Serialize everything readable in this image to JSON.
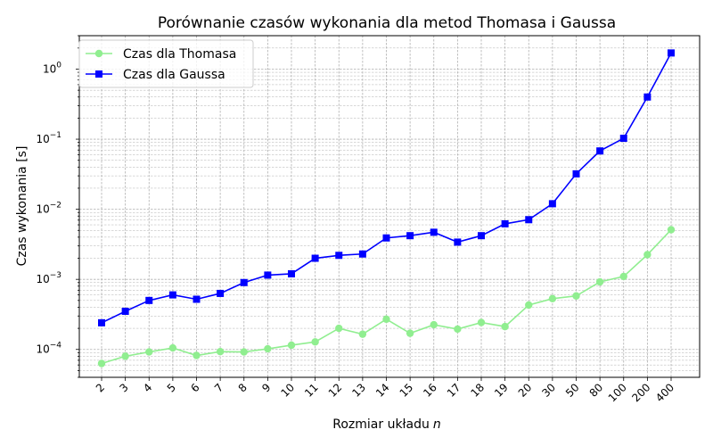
{
  "chart_data": {
    "type": "line",
    "title": "Porównanie czasów wykonania dla metod Thomasa i Gaussa",
    "xlabel": "Rozmiar układu",
    "xlabel_var": "n",
    "ylabel": "Czas wykonania [s]",
    "yscale": "log",
    "ylim": [
      4e-05,
      3
    ],
    "grid": true,
    "legend_position": "top-left",
    "categories": [
      "2",
      "3",
      "4",
      "5",
      "6",
      "7",
      "8",
      "9",
      "10",
      "11",
      "12",
      "13",
      "14",
      "15",
      "16",
      "17",
      "18",
      "19",
      "20",
      "30",
      "50",
      "80",
      "100",
      "200",
      "400"
    ],
    "y_ticks": [
      {
        "value": 0.0001,
        "base": "10",
        "exp": "−4"
      },
      {
        "value": 0.001,
        "base": "10",
        "exp": "−3"
      },
      {
        "value": 0.01,
        "base": "10",
        "exp": "−2"
      },
      {
        "value": 0.1,
        "base": "10",
        "exp": "−1"
      },
      {
        "value": 1,
        "base": "10",
        "exp": "0"
      }
    ],
    "series": [
      {
        "name": "Czas dla Thomasa",
        "color": "#90ee90",
        "marker": "circle",
        "values": [
          6.3e-05,
          8e-05,
          9.2e-05,
          0.000105,
          8.2e-05,
          9.3e-05,
          9.2e-05,
          0.000102,
          0.000115,
          0.000128,
          0.0002,
          0.000165,
          0.00027,
          0.00017,
          0.000225,
          0.000195,
          0.000242,
          0.000212,
          0.00043,
          0.00053,
          0.00058,
          0.00092,
          0.0011,
          0.00225,
          0.0051
        ]
      },
      {
        "name": "Czas dla Gaussa",
        "color": "#0000ff",
        "marker": "square",
        "values": [
          0.00024,
          0.00035,
          0.0005,
          0.0006,
          0.00052,
          0.00063,
          0.0009,
          0.00115,
          0.0012,
          0.002,
          0.0022,
          0.0023,
          0.0039,
          0.0042,
          0.0047,
          0.0034,
          0.0042,
          0.0062,
          0.0071,
          0.012,
          0.032,
          0.068,
          0.103,
          0.4,
          1.7
        ]
      }
    ]
  }
}
